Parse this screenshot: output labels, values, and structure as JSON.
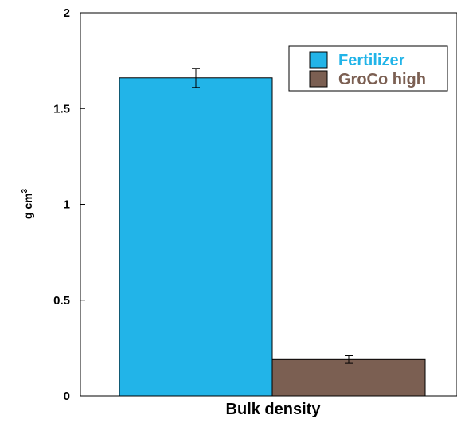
{
  "chart_data": {
    "type": "bar",
    "categories": [
      "Bulk density"
    ],
    "series": [
      {
        "name": "Fertilizer",
        "values": [
          1.66
        ],
        "error": [
          0.05
        ],
        "color": "#22b4e8"
      },
      {
        "name": "GroCo high",
        "values": [
          0.19
        ],
        "error": [
          0.02
        ],
        "color": "#7b5f52"
      }
    ],
    "xlabel": "Bulk density",
    "ylabel_main": "g cm",
    "ylabel_sup": "3",
    "ylim": [
      0,
      2
    ],
    "yticks": [
      0,
      0.5,
      1,
      1.5,
      2
    ],
    "ytick_labels": [
      "0",
      "0.5",
      "1",
      "1.5",
      "2"
    ],
    "grid": false,
    "legend_position": "top-right"
  }
}
